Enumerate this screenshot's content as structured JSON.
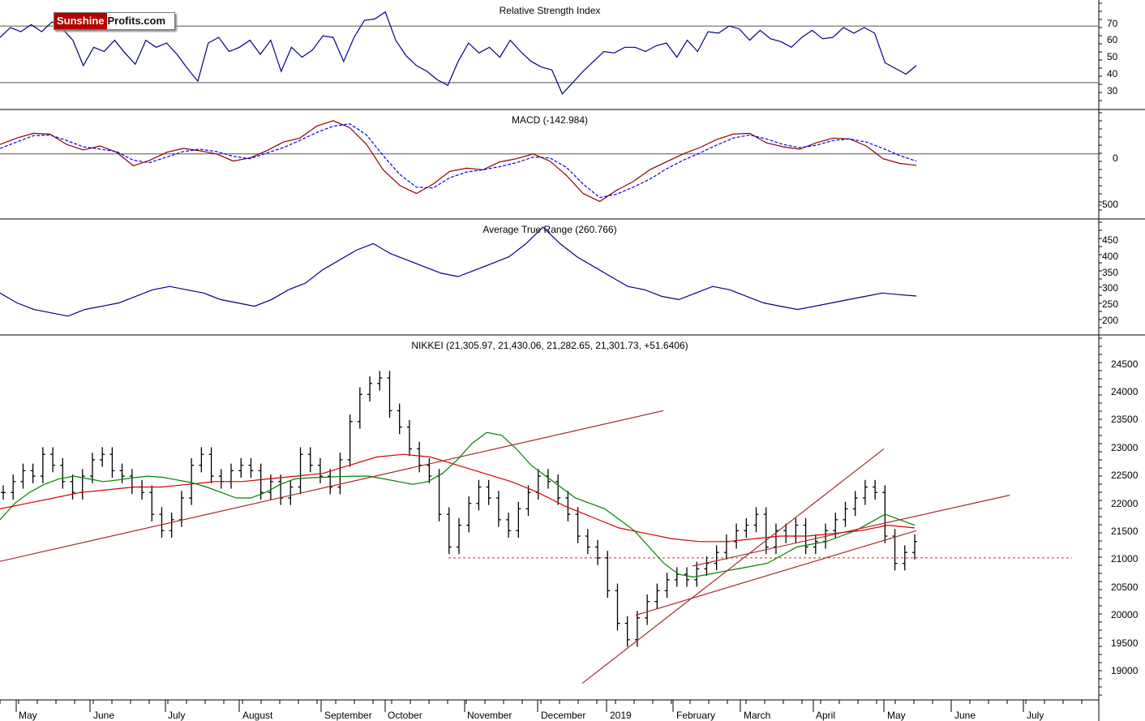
{
  "logo": {
    "part1": "Sunshine",
    "part2": "Profits.com"
  },
  "months": [
    "May",
    "June",
    "July",
    "August",
    "September",
    "October",
    "November",
    "December",
    "2019",
    "February",
    "March",
    "April",
    "May",
    "June",
    "July"
  ],
  "colors": {
    "rsi": "#00008b",
    "macd": "#8b0000",
    "signal": "#0000ff",
    "atr": "#00008b",
    "ma_short": "#008000",
    "ma_long": "#d40000",
    "trendline": "#a52a2a",
    "support": "#c0392b",
    "bars": "#000000"
  },
  "chart_data": [
    {
      "type": "line",
      "title": "Relative Strength Index",
      "ylim": [
        15,
        85
      ],
      "ticks": [
        "70",
        "60",
        "50",
        "40",
        "30"
      ],
      "reference_lines": [
        70,
        30
      ],
      "series": [
        {
          "values": [
            62,
            69,
            66,
            71,
            66,
            73,
            68,
            60,
            42,
            55,
            52,
            60,
            51,
            43,
            60,
            55,
            58,
            50,
            40,
            31,
            58,
            62,
            52,
            55,
            60,
            50,
            60,
            38,
            55,
            48,
            53,
            63,
            62,
            45,
            62,
            74,
            75,
            80,
            60,
            49,
            42,
            38,
            32,
            28,
            45,
            58,
            51,
            55,
            48,
            60,
            52,
            45,
            41,
            39,
            22,
            30,
            38,
            45,
            52,
            51,
            55,
            55,
            52,
            56,
            58,
            48,
            60,
            52,
            66,
            65,
            70,
            68,
            60,
            67,
            61,
            59,
            55,
            62,
            67,
            61,
            62,
            69,
            65,
            69,
            65,
            44,
            40,
            36,
            42
          ]
        }
      ]
    },
    {
      "type": "line",
      "title": "MACD (-142.984)",
      "ylim": [
        -750,
        500
      ],
      "ticks": [
        "0",
        "-500"
      ],
      "reference_lines": [
        0
      ],
      "series": [
        {
          "values": [
            120,
            200,
            260,
            250,
            120,
            50,
            100,
            20,
            -150,
            -80,
            20,
            70,
            40,
            0,
            -90,
            -50,
            40,
            150,
            200,
            350,
            420,
            330,
            120,
            -200,
            -400,
            -500,
            -380,
            -220,
            -180,
            -200,
            -100,
            -60,
            0,
            -90,
            -270,
            -500,
            -600,
            -460,
            -350,
            -200,
            -100,
            0,
            80,
            180,
            250,
            260,
            140,
            90,
            60,
            140,
            200,
            190,
            100,
            -60,
            -120,
            -143
          ]
        },
        {
          "values": [
            70,
            150,
            230,
            240,
            170,
            90,
            60,
            30,
            -80,
            -110,
            -40,
            30,
            60,
            30,
            -30,
            -60,
            10,
            80,
            170,
            270,
            350,
            380,
            240,
            -20,
            -260,
            -420,
            -430,
            -300,
            -230,
            -200,
            -160,
            -110,
            -40,
            -50,
            -170,
            -380,
            -550,
            -510,
            -420,
            -320,
            -190,
            -80,
            10,
            110,
            200,
            240,
            190,
            120,
            80,
            110,
            170,
            190,
            150,
            70,
            -20,
            -90
          ]
        }
      ]
    },
    {
      "type": "line",
      "title": "Average True Range (260.766)",
      "ylim": [
        160,
        480
      ],
      "ticks": [
        "450",
        "400",
        "350",
        "300",
        "250",
        "200"
      ],
      "series": [
        {
          "values": [
            270,
            240,
            220,
            210,
            200,
            220,
            230,
            240,
            260,
            280,
            290,
            280,
            270,
            250,
            240,
            230,
            250,
            280,
            300,
            340,
            370,
            400,
            420,
            390,
            370,
            350,
            330,
            320,
            340,
            360,
            380,
            420,
            470,
            420,
            380,
            350,
            320,
            290,
            280,
            260,
            250,
            270,
            290,
            280,
            260,
            240,
            230,
            220,
            230,
            240,
            250,
            260,
            270,
            265,
            261
          ]
        }
      ]
    },
    {
      "type": "bar",
      "title": "NIKKEI (21,305.97, 21,430.06, 21,282.65, 21,301.73, +51.6406)",
      "ylim": [
        18500,
        25000
      ],
      "ticks": [
        "24500",
        "24000",
        "23500",
        "23000",
        "22500",
        "22000",
        "21500",
        "21000",
        "20500",
        "20000",
        "19500",
        "19000"
      ],
      "support_level": 21000,
      "close": [
        22200,
        22400,
        22600,
        22500,
        22900,
        22700,
        22400,
        22200,
        22500,
        22800,
        22900,
        22600,
        22500,
        22300,
        22200,
        21800,
        21500,
        21700,
        22100,
        22700,
        22900,
        22500,
        22400,
        22600,
        22700,
        22600,
        22200,
        22400,
        22100,
        22300,
        22900,
        22700,
        22500,
        22300,
        22800,
        23500,
        24000,
        24200,
        24300,
        23700,
        23400,
        23000,
        22700,
        22500,
        21800,
        21200,
        21600,
        22000,
        22300,
        22100,
        21700,
        21500,
        21900,
        22200,
        22500,
        22400,
        22100,
        21800,
        21400,
        21200,
        21000,
        20400,
        19800,
        19500,
        19900,
        20200,
        20400,
        20600,
        20700,
        20600,
        20800,
        20900,
        21100,
        21300,
        21500,
        21600,
        21800,
        21200,
        21500,
        21400,
        21600,
        21200,
        21300,
        21500,
        21700,
        21900,
        22100,
        22300,
        22200,
        21400,
        20900,
        21100,
        21300
      ],
      "ma_short": [
        21700,
        22000,
        22200,
        22350,
        22450,
        22500,
        22450,
        22400,
        22430,
        22470,
        22500,
        22480,
        22430,
        22380,
        22300,
        22200,
        22100,
        22100,
        22200,
        22350,
        22450,
        22470,
        22480,
        22490,
        22500,
        22500,
        22450,
        22400,
        22350,
        22400,
        22550,
        22800,
        23100,
        23300,
        23250,
        23000,
        22700,
        22500,
        22300,
        22100,
        22000,
        21900,
        21700,
        21500,
        21200,
        20900,
        20700,
        20650,
        20700,
        20750,
        20800,
        20850,
        20900,
        21050,
        21200,
        21250,
        21300,
        21400,
        21500,
        21650,
        21800,
        21700,
        21600
      ],
      "ma_long": [
        21900,
        22000,
        22100,
        22200,
        22250,
        22300,
        22300,
        22350,
        22400,
        22400,
        22450,
        22500,
        22550,
        22700,
        22850,
        22900,
        22850,
        22700,
        22550,
        22400,
        22200,
        21950,
        21750,
        21550,
        21450,
        21350,
        21300,
        21300,
        21350,
        21400,
        21400,
        21450,
        21500,
        21600,
        21550
      ],
      "trendlines": [
        {
          "from": [
            "Apr 2018",
            20700
          ],
          "to": [
            "Nov 2018",
            23700
          ]
        },
        {
          "from": [
            "Dec 2018",
            18700
          ],
          "to": [
            "Apr 2019",
            23000
          ]
        },
        {
          "from": [
            "Jan 2019",
            19950
          ],
          "to": [
            "May 2019",
            21500
          ]
        },
        {
          "from": [
            "Feb 2019",
            20850
          ],
          "to": [
            "Jun 2019",
            22150
          ]
        }
      ]
    }
  ]
}
